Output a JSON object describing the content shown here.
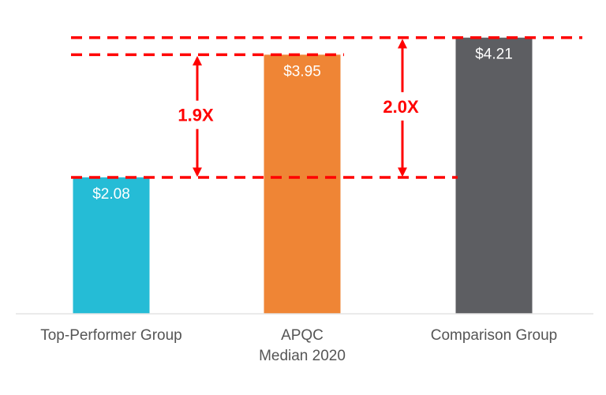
{
  "chart_data": {
    "type": "bar",
    "title": "",
    "xlabel": "",
    "ylabel": "",
    "ylim": [
      0,
      4.3
    ],
    "grid": false,
    "categories": [
      "Top-Performer Group",
      "APQC\nMedian 2020",
      "Comparison Group"
    ],
    "category_lines": [
      [
        "Top-Performer Group"
      ],
      [
        "APQC",
        "Median 2020"
      ],
      [
        "Comparison Group"
      ]
    ],
    "values": [
      2.08,
      3.95,
      4.21
    ],
    "data_labels": [
      "$2.08",
      "$3.95",
      "$4.21"
    ],
    "colors": [
      "#25bcd6",
      "#ef8535",
      "#5d5e62"
    ],
    "reference_lines": [
      2.08,
      3.95,
      4.21
    ],
    "annotations": [
      {
        "text": "1.9X",
        "from": 2.08,
        "to": 3.95
      },
      {
        "text": "2.0X",
        "from": 2.08,
        "to": 4.21
      }
    ],
    "annotation_color": "#ff0000"
  }
}
